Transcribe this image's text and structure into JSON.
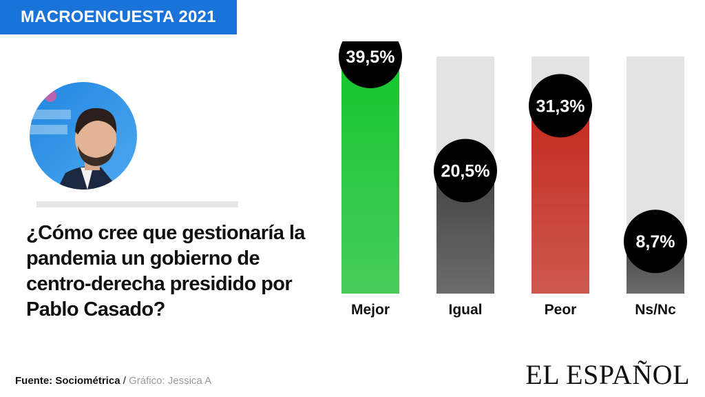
{
  "header": {
    "title": "MACROENCUESTA 2021"
  },
  "question": "¿Cómo cree que gestionaría la\npandemia un  gobierno de\ncentro-derecha presidido por\nPablo  Casado?",
  "footer": {
    "source_label": "Fuente: Sociométrica",
    "separator": " / ",
    "credit": "Gráfico: Jessica A"
  },
  "brand": "EL ESPAÑOL",
  "chart_data": {
    "type": "bar",
    "categories": [
      "Mejor",
      "Igual",
      "Peor",
      "Ns/Nc"
    ],
    "values": [
      39.5,
      20.5,
      31.3,
      8.7
    ],
    "data_labels": [
      "39,5%",
      "20,5%",
      "31,3%",
      "8,7%"
    ],
    "ylim": [
      0,
      39.5
    ],
    "colors": [
      "#14c52e",
      "#444444",
      "#c52a1e",
      "#444444"
    ],
    "track_color": "#e3e3e3",
    "label_bubble_color": "#000000",
    "grid": false
  }
}
